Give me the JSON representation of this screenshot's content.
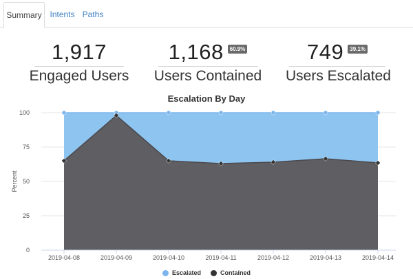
{
  "tabs": [
    {
      "label": "Summary",
      "active": true
    },
    {
      "label": "Intents",
      "active": false
    },
    {
      "label": "Paths",
      "active": false
    }
  ],
  "kpis": {
    "engaged": {
      "value": "1,917",
      "label": "Engaged Users"
    },
    "contained": {
      "value": "1,168",
      "badge": "60.9%",
      "label": "Users Contained"
    },
    "escalated": {
      "value": "749",
      "badge": "39.1%",
      "label": "Users Escalated"
    }
  },
  "chart_data": {
    "type": "area",
    "title": "Escalation By Day",
    "ylabel": "Percent",
    "xlabel": "",
    "ylim": [
      0,
      100
    ],
    "yticks": [
      0,
      25,
      50,
      75,
      100
    ],
    "categories": [
      "2019-04-08",
      "2019-04-09",
      "2019-04-10",
      "2019-04-11",
      "2019-04-12",
      "2019-04-13",
      "2019-04-14"
    ],
    "series": [
      {
        "name": "Escalated",
        "color": "#8ec4f0",
        "marker_color": "#7cb5ec",
        "values": [
          100,
          100,
          100,
          100,
          100,
          100,
          100
        ]
      },
      {
        "name": "Contained",
        "color": "#5f5e63",
        "marker_color": "#333333",
        "values": [
          65,
          98,
          65,
          63,
          64,
          66.5,
          63.5
        ]
      }
    ],
    "grid": true,
    "legend": "bottom-center"
  }
}
